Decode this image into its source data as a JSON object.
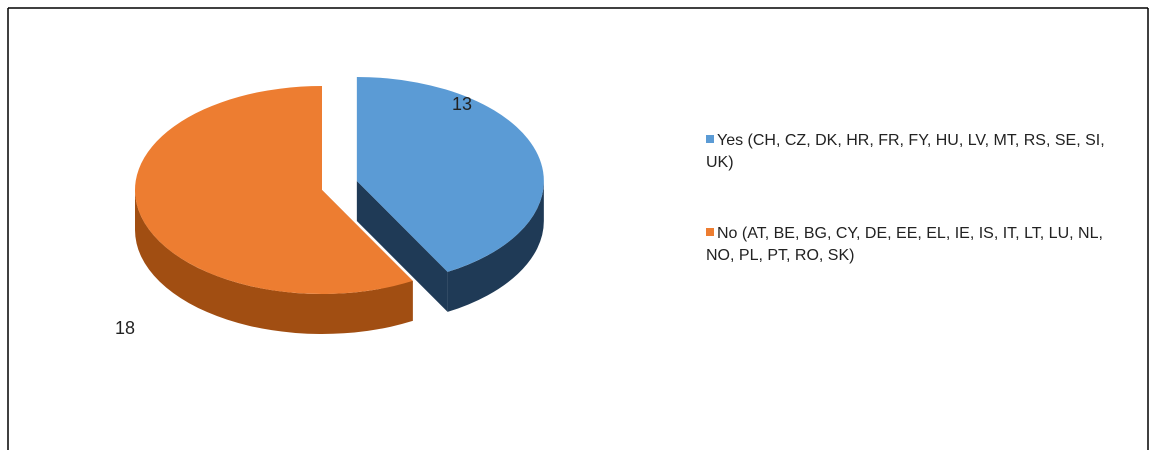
{
  "chart_data": {
    "type": "pie",
    "categories": [
      "Yes (CH, CZ, DK, HR, FR, FY, HU, LV, MT, RS, SE, SI, UK)",
      "No (AT, BE, BG, CY, DE, EE, EL, IE, IS, IT, LT, LU, NL, NO, PL, PT, RO, SK)"
    ],
    "values": [
      13,
      18
    ],
    "colors": [
      "#5b9bd5",
      "#ed7d31"
    ],
    "side_colors": [
      "#1f3a56",
      "#a14e12"
    ],
    "legend": "right"
  }
}
